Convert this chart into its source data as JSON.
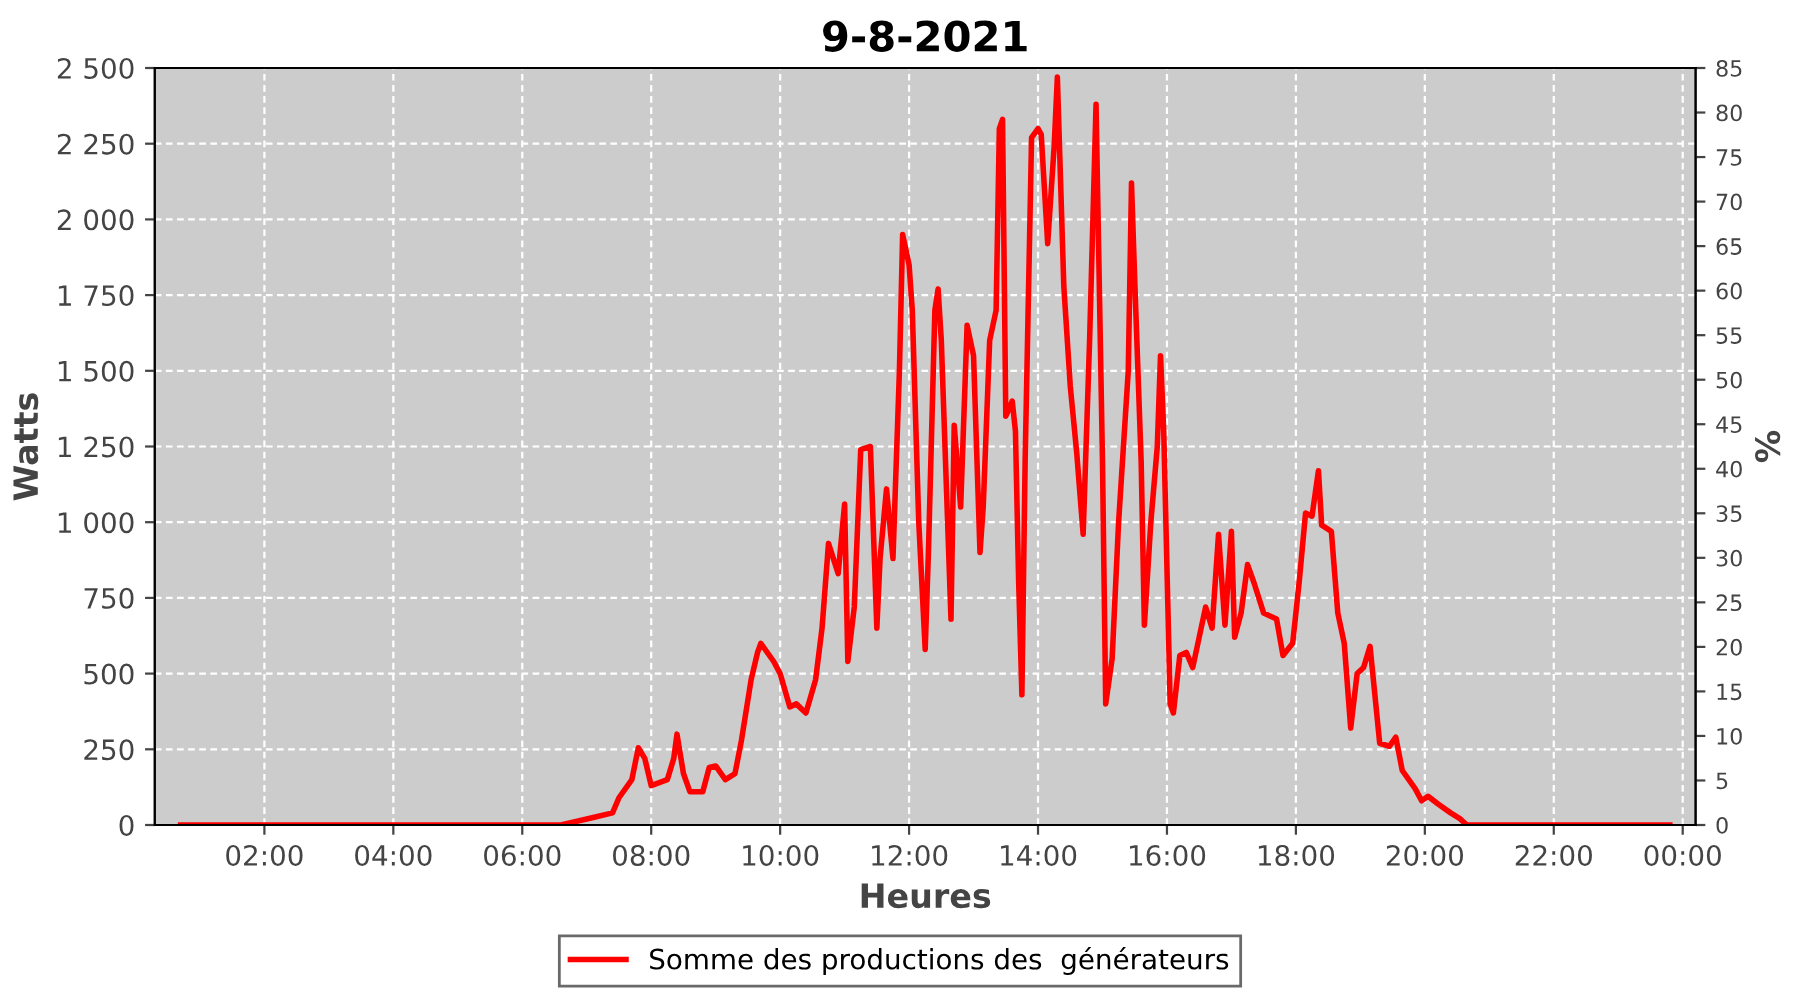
{
  "chart_data": {
    "type": "line",
    "title": "9-8-2021",
    "xlabel": "Heures",
    "ylabel": "Watts",
    "y2label": "%",
    "xlim": [
      0.3,
      24.2
    ],
    "xticks": [
      {
        "value": 2,
        "label": "02:00"
      },
      {
        "value": 4,
        "label": "04:00"
      },
      {
        "value": 6,
        "label": "06:00"
      },
      {
        "value": 8,
        "label": "08:00"
      },
      {
        "value": 10,
        "label": "10:00"
      },
      {
        "value": 12,
        "label": "12:00"
      },
      {
        "value": 14,
        "label": "14:00"
      },
      {
        "value": 16,
        "label": "16:00"
      },
      {
        "value": 18,
        "label": "18:00"
      },
      {
        "value": 20,
        "label": "20:00"
      },
      {
        "value": 22,
        "label": "22:00"
      },
      {
        "value": 24,
        "label": "00:00"
      }
    ],
    "ylim": [
      0,
      2500
    ],
    "yticks": [
      0,
      250,
      500,
      750,
      {
        "value": 1000,
        "label": "1 000"
      },
      {
        "value": 1250,
        "label": "1 250"
      },
      {
        "value": 1500,
        "label": "1 500"
      },
      {
        "value": 1750,
        "label": "1 750"
      },
      {
        "value": 2000,
        "label": "2 000"
      },
      {
        "value": 2250,
        "label": "2 250"
      },
      {
        "value": 2500,
        "label": "2 500"
      }
    ],
    "y2lim": [
      0,
      85
    ],
    "y2ticks": [
      0,
      5,
      10,
      15,
      20,
      25,
      30,
      35,
      40,
      45,
      50,
      55,
      60,
      65,
      70,
      75,
      80,
      85
    ],
    "grid": true,
    "legend": "bottom",
    "line_style": "solid",
    "series": [
      {
        "name": "Somme des productions des  générateurs",
        "color": "#ff0000",
        "x": [
          0.7,
          6.6,
          7.1,
          7.4,
          7.5,
          7.7,
          7.8,
          7.9,
          8.0,
          8.25,
          8.35,
          8.4,
          8.5,
          8.6,
          8.8,
          8.9,
          9.0,
          9.15,
          9.3,
          9.4,
          9.55,
          9.65,
          9.7,
          9.9,
          10.0,
          10.15,
          10.25,
          10.4,
          10.55,
          10.65,
          10.75,
          10.9,
          11.0,
          11.05,
          11.15,
          11.25,
          11.4,
          11.5,
          11.55,
          11.65,
          11.75,
          11.85,
          11.9,
          12.0,
          12.05,
          12.15,
          12.25,
          12.3,
          12.4,
          12.45,
          12.5,
          12.65,
          12.7,
          12.8,
          12.9,
          13.0,
          13.1,
          13.15,
          13.25,
          13.35,
          13.4,
          13.45,
          13.5,
          13.6,
          13.65,
          13.7,
          13.75,
          13.8,
          13.9,
          14.0,
          14.05,
          14.15,
          14.25,
          14.3,
          14.4,
          14.5,
          14.6,
          14.7,
          14.8,
          14.9,
          15.0,
          15.05,
          15.15,
          15.25,
          15.4,
          15.45,
          15.5,
          15.6,
          15.65,
          15.75,
          15.85,
          15.9,
          15.95,
          16.05,
          16.1,
          16.2,
          16.3,
          16.4,
          16.5,
          16.6,
          16.7,
          16.8,
          16.9,
          17.0,
          17.05,
          17.15,
          17.25,
          17.35,
          17.5,
          17.7,
          17.8,
          17.95,
          18.05,
          18.15,
          18.25,
          18.35,
          18.4,
          18.55,
          18.65,
          18.75,
          18.85,
          18.95,
          19.05,
          19.15,
          19.3,
          19.45,
          19.55,
          19.65,
          19.85,
          19.95,
          20.05,
          20.2,
          20.4,
          20.55,
          20.65,
          23.8
        ],
        "values": [
          0,
          0,
          25,
          40,
          90,
          150,
          255,
          220,
          130,
          150,
          220,
          300,
          170,
          110,
          110,
          190,
          195,
          150,
          170,
          280,
          480,
          570,
          600,
          540,
          500,
          390,
          400,
          370,
          480,
          650,
          930,
          830,
          1060,
          540,
          720,
          1240,
          1250,
          650,
          880,
          1110,
          880,
          1500,
          1950,
          1850,
          1700,
          1000,
          580,
          900,
          1700,
          1770,
          1600,
          680,
          1320,
          1050,
          1650,
          1550,
          900,
          1050,
          1600,
          1700,
          2300,
          2330,
          1350,
          1400,
          1300,
          800,
          430,
          1200,
          2270,
          2300,
          2280,
          1920,
          2240,
          2470,
          1780,
          1450,
          1230,
          960,
          1600,
          2380,
          1200,
          400,
          550,
          1000,
          1500,
          2120,
          1800,
          1200,
          660,
          1000,
          1250,
          1550,
          1300,
          400,
          370,
          560,
          570,
          520,
          620,
          720,
          650,
          960,
          660,
          970,
          620,
          700,
          860,
          800,
          700,
          680,
          560,
          600,
          800,
          1030,
          1020,
          1170,
          990,
          970,
          700,
          600,
          320,
          500,
          520,
          590,
          270,
          260,
          290,
          180,
          120,
          80,
          95,
          70,
          40,
          20,
          0,
          0
        ]
      }
    ]
  }
}
